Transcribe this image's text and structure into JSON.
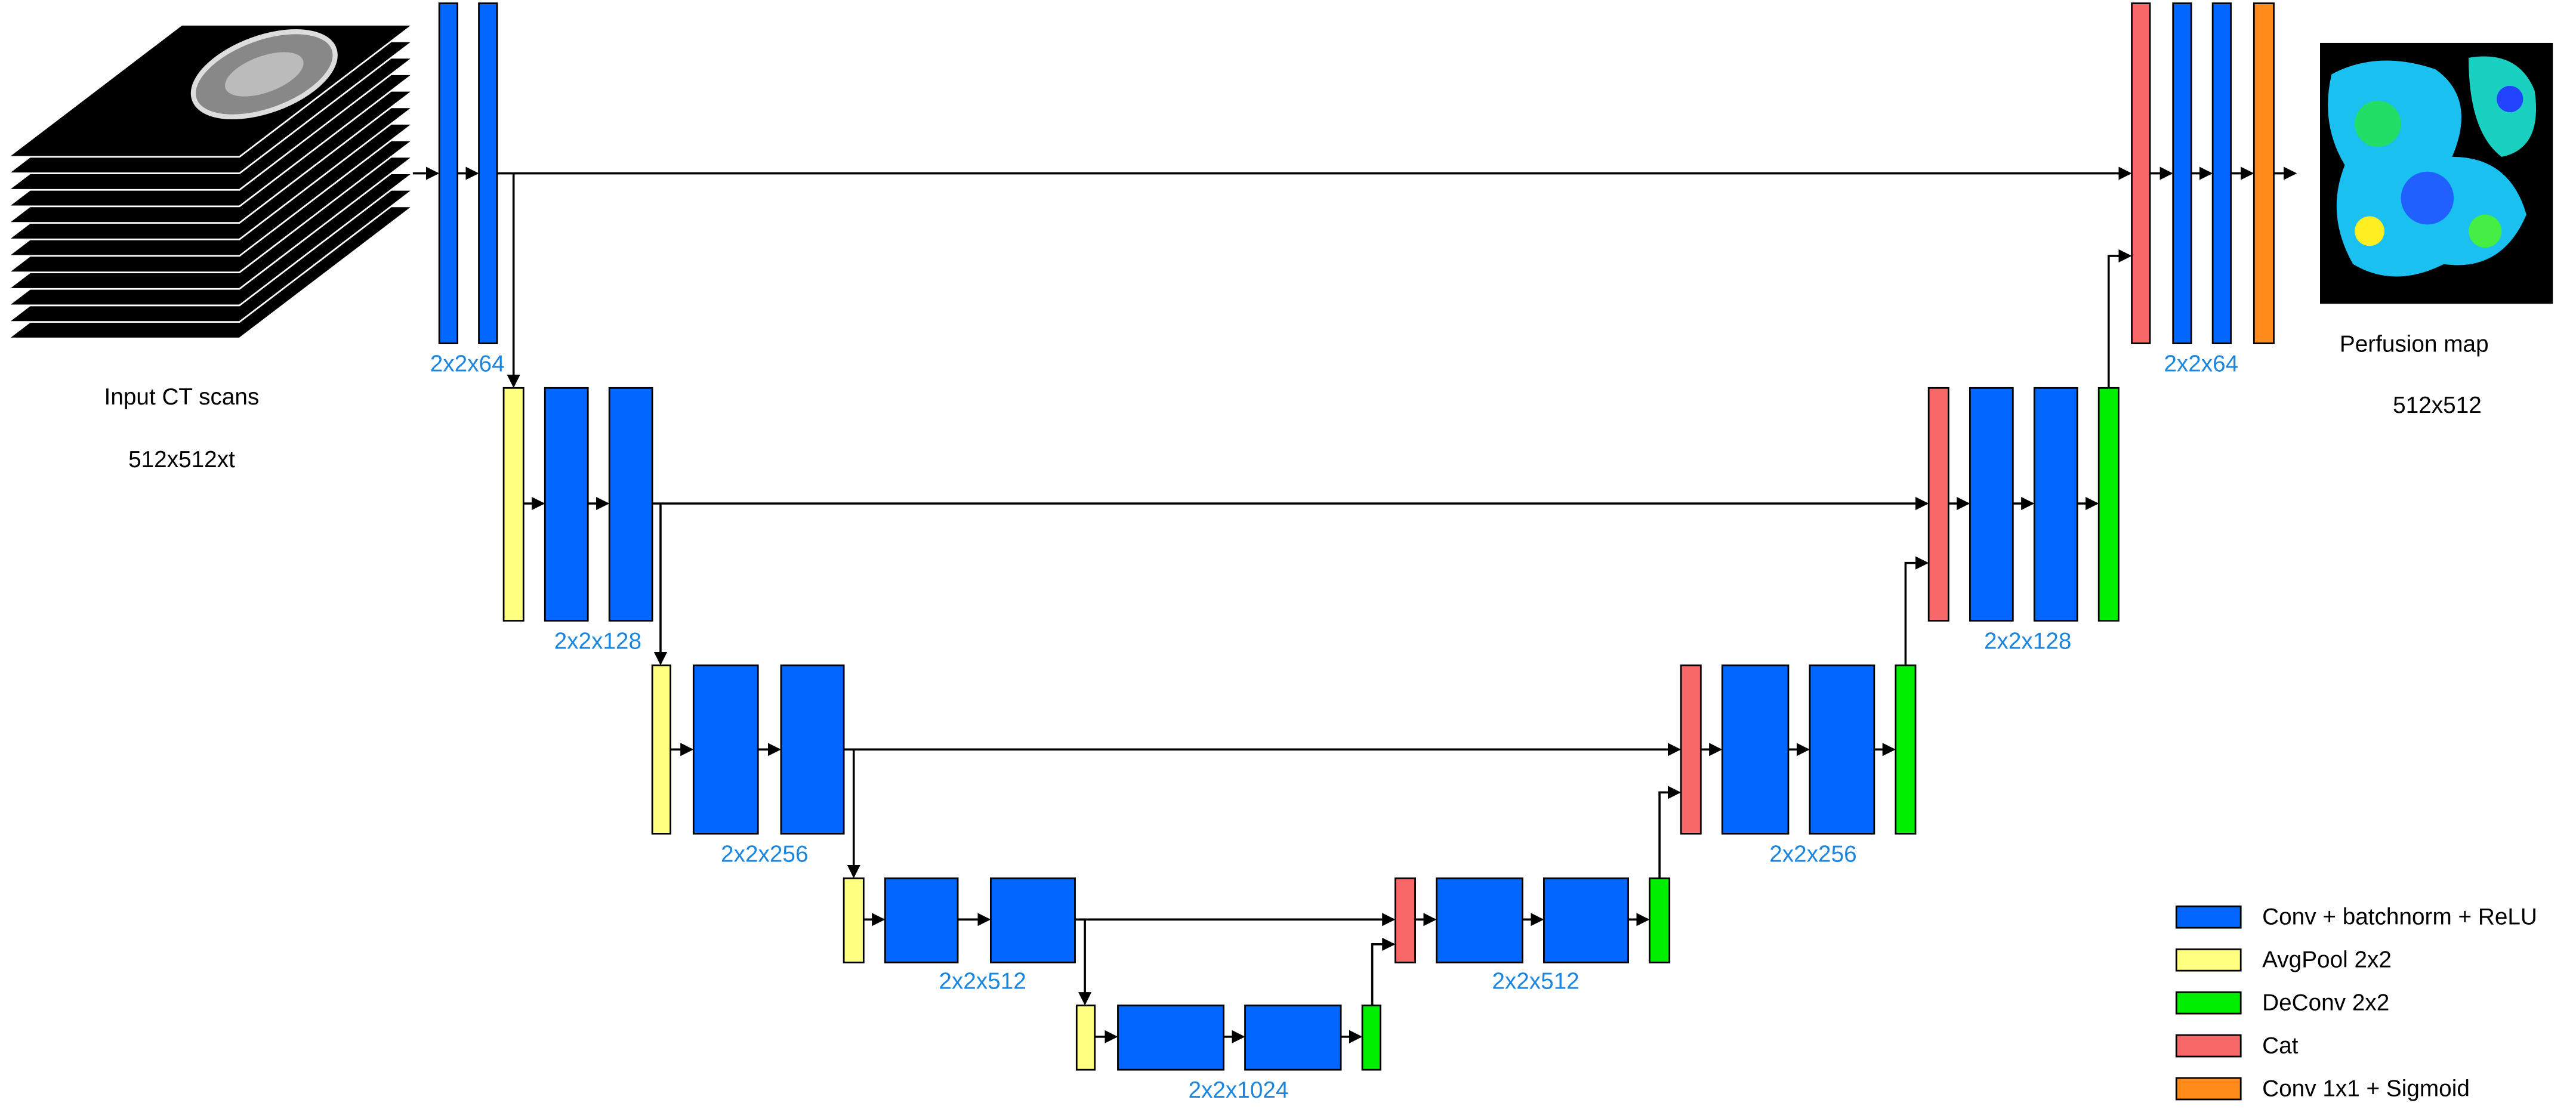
{
  "input": {
    "title": "Input CT scans",
    "size": "512x512xt"
  },
  "encoder_labels": [
    "2x2x64",
    "2x2x128",
    "2x2x256",
    "2x2x512",
    "2x2x1024"
  ],
  "decoder_labels": [
    "2x2x512",
    "2x2x256",
    "2x2x128",
    "2x2x64"
  ],
  "output": {
    "title": "Perfusion map",
    "size": "512x512"
  },
  "legend": [
    "Conv + batchnorm + ReLU",
    "AvgPool 2x2",
    "DeConv 2x2",
    "Cat",
    "Conv 1x1 + Sigmoid"
  ]
}
